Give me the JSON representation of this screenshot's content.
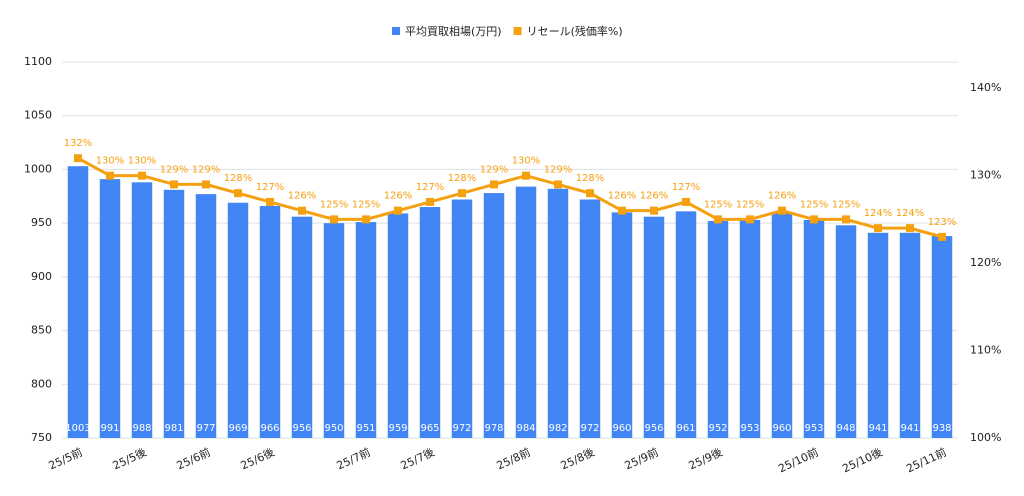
{
  "chart_data": {
    "type": "bar",
    "categories": [
      "25/5前",
      null,
      "25/5後",
      null,
      "25/6前",
      null,
      "25/6後",
      null,
      null,
      "25/7前",
      null,
      "25/7後",
      null,
      null,
      "25/8前",
      null,
      "25/8後",
      null,
      "25/9前",
      null,
      "25/9後",
      null,
      null,
      "25/10前",
      null,
      "25/10後",
      null,
      "25/11前"
    ],
    "series": [
      {
        "name": "平均買取相場(万円)",
        "color": "#4285f4",
        "type": "bar",
        "values": [
          1003,
          991,
          988,
          981,
          977,
          969,
          966,
          956,
          950,
          951,
          959,
          965,
          972,
          978,
          984,
          982,
          972,
          960,
          956,
          961,
          952,
          953,
          960,
          953,
          948,
          941,
          941,
          938
        ]
      },
      {
        "name": "リセール(残価率%)",
        "color": "#f5a00f",
        "type": "line",
        "axis": "y2",
        "values": [
          132,
          130,
          130,
          129,
          129,
          128,
          127,
          126,
          125,
          125,
          126,
          127,
          128,
          129,
          130,
          129,
          128,
          126,
          126,
          127,
          125,
          125,
          126,
          125,
          125,
          124,
          124,
          123
        ],
        "value_labels": [
          "132%",
          "130%",
          "130%",
          "129%",
          "129%",
          "128%",
          "127%",
          "126%",
          "125%",
          "125%",
          "126%",
          "127%",
          "128%",
          "129%",
          "130%",
          "129%",
          "128%",
          "126%",
          "126%",
          "127%",
          "125%",
          "125%",
          "126%",
          "125%",
          "125%",
          "124%",
          "124%",
          "123%"
        ]
      }
    ],
    "ylim": [
      750,
      1100
    ],
    "yticks": [
      750,
      800,
      850,
      900,
      950,
      1000,
      1050,
      1100
    ],
    "y2lim": [
      100,
      143
    ],
    "y2ticks": [
      {
        "value": 100,
        "label": "100%"
      },
      {
        "value": 110,
        "label": "110%"
      },
      {
        "value": 120,
        "label": "120%"
      },
      {
        "value": 130,
        "label": "130%"
      },
      {
        "value": 140,
        "label": "140%"
      }
    ],
    "grid": true,
    "legend": "top"
  }
}
